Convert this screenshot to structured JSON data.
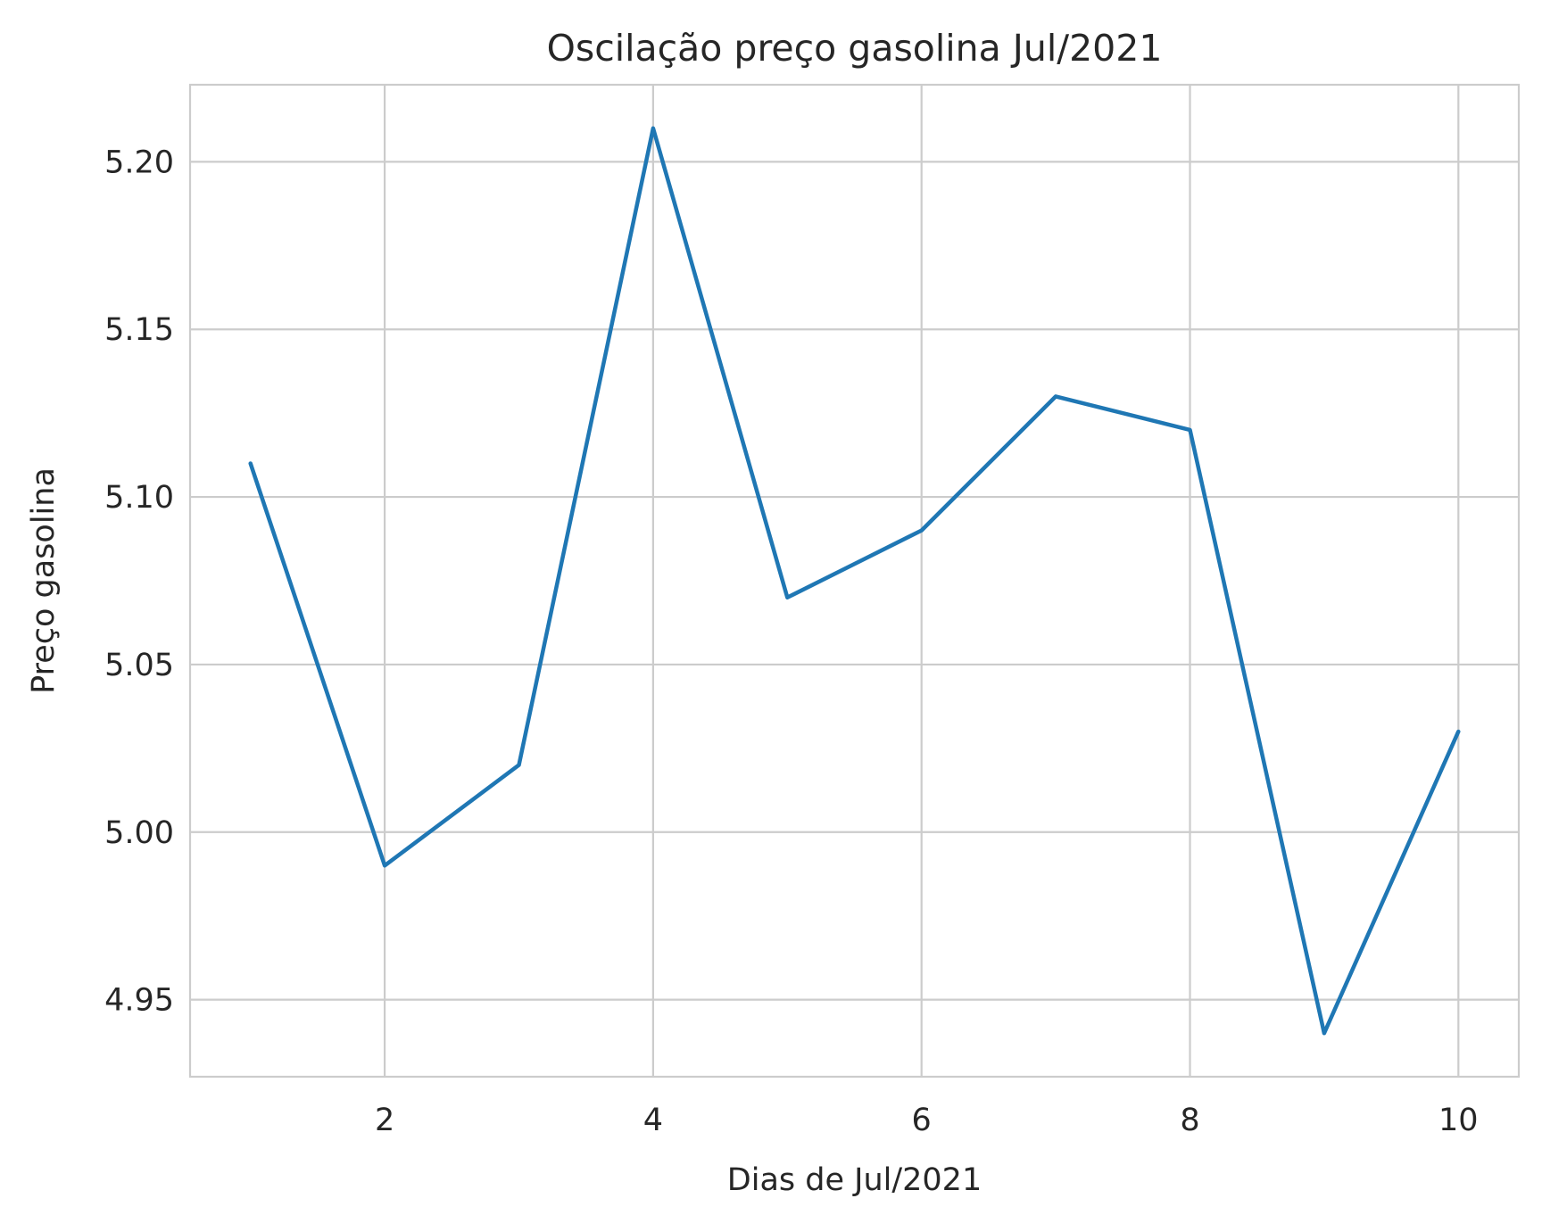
{
  "chart_data": {
    "type": "line",
    "title": "Oscilação preço gasolina Jul/2021",
    "xlabel": "Dias de Jul/2021",
    "ylabel": "Preço gasolina",
    "x": [
      1,
      2,
      3,
      4,
      5,
      6,
      7,
      8,
      9,
      10
    ],
    "series": [
      {
        "values": [
          5.11,
          4.99,
          5.02,
          5.21,
          5.07,
          5.09,
          5.13,
          5.12,
          4.94,
          5.03
        ]
      }
    ],
    "xlim": [
      0.55,
      10.45
    ],
    "ylim": [
      4.927,
      5.223
    ],
    "xticks": [
      2,
      4,
      6,
      8,
      10
    ],
    "xtick_labels": [
      "2",
      "4",
      "6",
      "8",
      "10"
    ],
    "yticks": [
      4.95,
      5.0,
      5.05,
      5.1,
      5.15,
      5.2
    ],
    "ytick_labels": [
      "4.95",
      "5.00",
      "5.05",
      "5.10",
      "5.15",
      "5.20"
    ],
    "grid": true,
    "colors": {
      "line": "#1f77b4",
      "grid": "#cccccc",
      "text": "#262626"
    }
  }
}
